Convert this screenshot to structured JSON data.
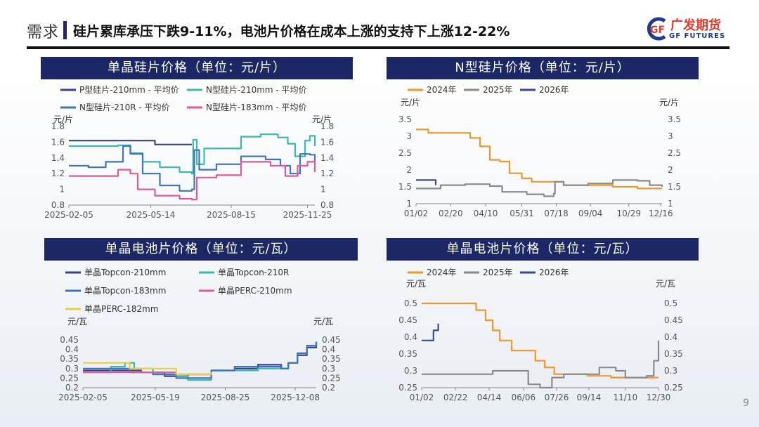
{
  "header": {
    "section": "需求",
    "subtitle": "硅片累库承压下跌9-11%，电池片价格在成本上涨的支持下上涨12-22%"
  },
  "logo": {
    "cn": "广发期货",
    "en": "GF FUTURES",
    "mark": "GF",
    "colors": {
      "red": "#e03a2b",
      "blue": "#1f3c88"
    }
  },
  "page_number": "9",
  "panels": {
    "p1": "单晶硅片价格（单位：元/片）",
    "p2": "N型硅片价格（单位：元/片）",
    "p3": "单晶电池片价格（单位：元/瓦）",
    "p4": "单晶电池片价格（单位：元/瓦）"
  },
  "chart_data": [
    {
      "id": "c1",
      "type": "line",
      "unit_left": "元/片",
      "unit_right": "元/片",
      "ylim": [
        0.8,
        1.8
      ],
      "yticks": [
        "0.8",
        "1",
        "1.2",
        "1.4",
        "1.6",
        "1.8"
      ],
      "x_ticks": [
        "2025-02-05",
        "2025-05-14",
        "2025-08-15",
        "2025-11-25"
      ],
      "x_tick_pos": [
        0.0,
        0.333,
        0.66,
        0.97
      ],
      "series": [
        {
          "name": "P型硅片-210mm - 平均价",
          "color": "#3b3f8f",
          "x": [
            0,
            0.3,
            0.35,
            0.5
          ],
          "y": [
            1.62,
            1.62,
            1.57,
            1.57
          ]
        },
        {
          "name": "N型硅片-210mm - 平均价",
          "color": "#3bb8b0",
          "x": [
            0,
            0.07,
            0.2,
            0.25,
            0.3,
            0.37,
            0.45,
            0.5,
            0.505,
            0.52,
            0.55,
            0.6,
            0.7,
            0.78,
            0.85,
            0.89,
            0.92,
            0.96,
            0.98,
            1
          ],
          "y": [
            1.55,
            1.55,
            1.56,
            1.46,
            1.35,
            1.28,
            1.22,
            1.2,
            1.63,
            1.32,
            1.52,
            1.52,
            1.67,
            1.7,
            1.66,
            1.58,
            1.42,
            1.62,
            1.68,
            1.55
          ]
        },
        {
          "name": "N型硅片-210R - 平均价",
          "color": "#3f74b8",
          "x": [
            0,
            0.08,
            0.15,
            0.22,
            0.25,
            0.3,
            0.37,
            0.45,
            0.5,
            0.51,
            0.53,
            0.6,
            0.7,
            0.8,
            0.86,
            0.9,
            0.94,
            0.98,
            1
          ],
          "y": [
            1.3,
            1.28,
            1.35,
            1.55,
            1.45,
            1.2,
            1.05,
            0.98,
            1.0,
            1.5,
            1.25,
            1.32,
            1.42,
            1.38,
            1.3,
            1.2,
            1.45,
            1.44,
            1.35
          ]
        },
        {
          "name": "N型硅片-183mm - 平均价",
          "color": "#e05a93",
          "x": [
            0,
            0.1,
            0.2,
            0.25,
            0.28,
            0.35,
            0.45,
            0.5,
            0.52,
            0.6,
            0.7,
            0.82,
            0.88,
            0.93,
            0.97,
            1
          ],
          "y": [
            1.17,
            1.17,
            1.25,
            1.2,
            1.0,
            0.92,
            0.88,
            0.87,
            1.15,
            1.18,
            1.35,
            1.3,
            1.17,
            1.3,
            1.35,
            1.22
          ]
        }
      ]
    },
    {
      "id": "c2",
      "type": "line",
      "unit_left": "元/片",
      "unit_right": "元/片",
      "ylim": [
        1,
        3.5
      ],
      "yticks": [
        "1",
        "1.5",
        "2",
        "2.5",
        "3",
        "3.5"
      ],
      "x_ticks": [
        "01/02",
        "02/20",
        "04/10",
        "05/31",
        "07/18",
        "09/04",
        "10/29",
        "12/16"
      ],
      "x_tick_pos": [
        0.0,
        0.141,
        0.283,
        0.43,
        0.57,
        0.709,
        0.865,
        0.995
      ],
      "series": [
        {
          "name": "2024年",
          "color": "#f0962e",
          "x": [
            0,
            0.05,
            0.15,
            0.22,
            0.26,
            0.3,
            0.34,
            0.38,
            0.43,
            0.47,
            0.55,
            0.6,
            0.7,
            0.8,
            0.9,
            1
          ],
          "y": [
            3.2,
            3.1,
            3.1,
            2.95,
            2.7,
            2.3,
            2.25,
            1.9,
            1.75,
            1.65,
            1.65,
            1.55,
            1.55,
            1.5,
            1.45,
            1.45
          ]
        },
        {
          "name": "2025年",
          "color": "#8a8a8a",
          "x": [
            0,
            0.1,
            0.2,
            0.3,
            0.35,
            0.45,
            0.52,
            0.56,
            0.565,
            0.6,
            0.7,
            0.8,
            0.9,
            0.95,
            1
          ],
          "y": [
            1.45,
            1.55,
            1.58,
            1.52,
            1.35,
            1.28,
            1.22,
            1.3,
            1.65,
            1.55,
            1.6,
            1.7,
            1.68,
            1.55,
            1.5
          ]
        },
        {
          "name": "2026年",
          "color": "#3b4a8f",
          "x": [
            0,
            0.05,
            0.08
          ],
          "y": [
            1.7,
            1.7,
            1.55
          ]
        }
      ]
    },
    {
      "id": "c3",
      "type": "line",
      "unit_left": "元/瓦",
      "unit_right": "元/瓦",
      "ylim": [
        0.2,
        0.45
      ],
      "yticks": [
        "0.2",
        "0.25",
        "0.3",
        "0.35",
        "0.4",
        "0.45"
      ],
      "x_ticks": [
        "2025-02-05",
        "2025-05-19",
        "2025-08-25",
        "2025-12-08"
      ],
      "x_tick_pos": [
        0.0,
        0.31,
        0.61,
        0.91
      ],
      "series": [
        {
          "name": "单晶Topcon-210mm",
          "color": "#3b3f8f",
          "x": [
            0,
            0.15,
            0.25,
            0.35,
            0.45,
            0.55,
            0.65,
            0.75,
            0.85,
            0.88,
            0.92,
            0.96,
            1
          ],
          "y": [
            0.29,
            0.29,
            0.28,
            0.26,
            0.27,
            0.29,
            0.3,
            0.32,
            0.3,
            0.33,
            0.37,
            0.41,
            0.44
          ]
        },
        {
          "name": "单晶Topcon-210R",
          "color": "#3bb8b0",
          "x": [
            0,
            0.12,
            0.18,
            0.22,
            0.3,
            0.4,
            0.45,
            0.55,
            0.65,
            0.75,
            0.85,
            0.88,
            0.92,
            0.96,
            1
          ],
          "y": [
            0.28,
            0.31,
            0.33,
            0.3,
            0.27,
            0.26,
            0.24,
            0.29,
            0.29,
            0.3,
            0.3,
            0.33,
            0.38,
            0.42,
            0.44
          ]
        },
        {
          "name": "单晶Topcon-183mm",
          "color": "#3f74b8",
          "x": [
            0,
            0.12,
            0.2,
            0.3,
            0.4,
            0.45,
            0.55,
            0.65,
            0.75,
            0.85,
            0.88,
            0.92,
            0.96,
            1
          ],
          "y": [
            0.3,
            0.3,
            0.28,
            0.27,
            0.25,
            0.25,
            0.29,
            0.31,
            0.31,
            0.3,
            0.33,
            0.38,
            0.42,
            0.44
          ]
        },
        {
          "name": "单晶PERC-210mm",
          "color": "#e05a93",
          "x": [
            0,
            0.2,
            0.4,
            0.5,
            0.55
          ],
          "y": [
            0.28,
            0.28,
            0.27,
            0.27,
            0.28
          ]
        },
        {
          "name": "单晶PERC-182mm",
          "color": "#e8cf4a",
          "x": [
            0,
            0.2,
            0.4,
            0.5,
            0.55
          ],
          "y": [
            0.33,
            0.3,
            0.27,
            0.27,
            0.28
          ]
        }
      ]
    },
    {
      "id": "c4",
      "type": "line",
      "unit_left": "元/瓦",
      "unit_right": "元/瓦",
      "ylim": [
        0.25,
        0.5
      ],
      "yticks": [
        "0.25",
        "0.3",
        "0.35",
        "0.4",
        "0.45",
        "0.5"
      ],
      "x_ticks": [
        "01/02",
        "02/22",
        "04/14",
        "06/06",
        "07/26",
        "09/14",
        "11/10",
        "12/30"
      ],
      "x_tick_pos": [
        0.0,
        0.143,
        0.285,
        0.43,
        0.57,
        0.706,
        0.86,
        1.0
      ],
      "series": [
        {
          "name": "2024年",
          "color": "#f0962e",
          "x": [
            0,
            0.1,
            0.2,
            0.23,
            0.27,
            0.3,
            0.33,
            0.38,
            0.43,
            0.48,
            0.52,
            0.56,
            0.6,
            0.7,
            0.8,
            0.9,
            1
          ],
          "y": [
            0.5,
            0.5,
            0.5,
            0.48,
            0.45,
            0.42,
            0.39,
            0.36,
            0.36,
            0.33,
            0.31,
            0.29,
            0.29,
            0.285,
            0.28,
            0.28,
            0.28
          ]
        },
        {
          "name": "2025年",
          "color": "#8a8a8a",
          "x": [
            0,
            0.2,
            0.3,
            0.45,
            0.5,
            0.55,
            0.6,
            0.7,
            0.75,
            0.8,
            0.82,
            0.86,
            0.9,
            0.95,
            0.98,
            1
          ],
          "y": [
            0.29,
            0.29,
            0.3,
            0.26,
            0.25,
            0.28,
            0.29,
            0.29,
            0.31,
            0.31,
            0.3,
            0.28,
            0.28,
            0.285,
            0.33,
            0.39
          ]
        },
        {
          "name": "2026年",
          "color": "#3b4a8f",
          "x": [
            0,
            0.02,
            0.05,
            0.07
          ],
          "y": [
            0.39,
            0.39,
            0.42,
            0.44
          ]
        }
      ]
    }
  ]
}
